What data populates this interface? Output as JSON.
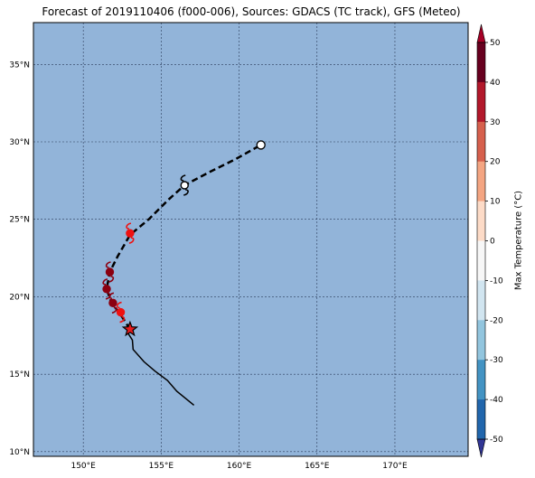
{
  "title": "Forecast of 2019110406 (f000-006), Sources: GDACS (TC track), GFS (Meteo)",
  "map": {
    "lon_range": [
      146.8,
      174.7
    ],
    "lat_range": [
      9.7,
      37.7
    ],
    "ocean_color": "#92b4d9",
    "grid": true,
    "lat_ticks": [
      10,
      15,
      20,
      25,
      30,
      35
    ],
    "lon_ticks": [
      150,
      155,
      160,
      165,
      170
    ],
    "lat_tick_labels": [
      "10°N",
      "15°N",
      "20°N",
      "25°N",
      "30°N",
      "35°N"
    ],
    "lon_tick_labels": [
      "150°E",
      "155°E",
      "160°E",
      "165°E",
      "170°E"
    ]
  },
  "track": {
    "past": [
      [
        157.1,
        13.0
      ],
      [
        156.0,
        13.9
      ],
      [
        155.4,
        14.6
      ],
      [
        154.6,
        15.2
      ],
      [
        153.9,
        15.8
      ],
      [
        153.2,
        16.6
      ],
      [
        153.15,
        17.2
      ],
      [
        152.9,
        17.6
      ],
      [
        153.0,
        17.9
      ]
    ],
    "forecast": [
      [
        153.0,
        17.9
      ],
      [
        152.3,
        19.0
      ],
      [
        151.8,
        19.6
      ],
      [
        151.5,
        20.5
      ],
      [
        151.7,
        21.6
      ],
      [
        152.2,
        22.6
      ],
      [
        153.0,
        24.0
      ],
      [
        154.2,
        25.0
      ],
      [
        155.5,
        26.3
      ],
      [
        156.5,
        27.2
      ],
      [
        158.0,
        28.0
      ],
      [
        159.8,
        28.9
      ],
      [
        161.4,
        29.8
      ]
    ],
    "current_position": [
      153.0,
      17.9
    ],
    "storm_icons": [
      {
        "lon": 153.0,
        "lat": 24.1,
        "color": "#ee1111",
        "symbol": "tropical-storm"
      },
      {
        "lon": 151.7,
        "lat": 21.6,
        "color": "#8b0011",
        "symbol": "typhoon"
      },
      {
        "lon": 151.5,
        "lat": 20.5,
        "color": "#8b0011",
        "symbol": "typhoon"
      },
      {
        "lon": 151.9,
        "lat": 19.6,
        "color": "#8b0011",
        "symbol": "typhoon"
      },
      {
        "lon": 152.4,
        "lat": 19.0,
        "color": "#ee1111",
        "symbol": "tropical-storm"
      },
      {
        "lon": 156.5,
        "lat": 27.2,
        "color": "#ffffff",
        "symbol": "tropical-storm"
      }
    ],
    "dissipation_point": [
      161.4,
      29.8
    ]
  },
  "colorbar": {
    "label": "Max Temperature (°C)",
    "ticks": [
      50,
      40,
      30,
      20,
      10,
      0,
      -10,
      -20,
      -30,
      -40,
      -50
    ],
    "colors_top_to_bottom": [
      "#67001f",
      "#b2182b",
      "#d6604d",
      "#f4a582",
      "#fddbc7",
      "#f7f7f7",
      "#d1e5f0",
      "#92c5de",
      "#4393c3",
      "#2166ac",
      "#053061"
    ],
    "band_colors_top_to_bottom": [
      "#a50026",
      "#d73027",
      "#f46d43",
      "#fdae61",
      "#fee090",
      "#ffffbf",
      "#e0f3f8",
      "#abd9e9",
      "#74add1",
      "#4575b4",
      "#313695"
    ],
    "over_color": "#a50026",
    "under_color": "#313695"
  }
}
